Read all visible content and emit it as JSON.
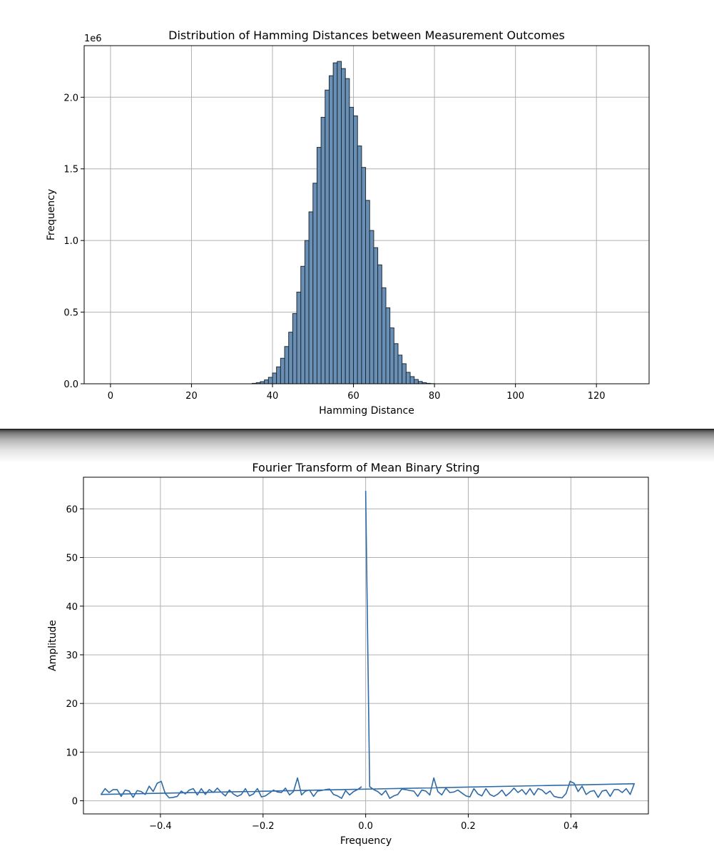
{
  "chart_data": [
    {
      "type": "bar",
      "title": "Distribution of Hamming Distances between Measurement Outcomes",
      "xlabel": "Hamming Distance",
      "ylabel": "Frequency",
      "y_offset_label": "1e6",
      "xlim": [
        -6.5,
        133
      ],
      "ylim": [
        0,
        2.36
      ],
      "x_ticks": [
        0,
        20,
        40,
        60,
        80,
        100,
        120
      ],
      "y_ticks": [
        0.0,
        0.5,
        1.0,
        1.5,
        2.0
      ],
      "y_tick_labels": [
        "0.0",
        "0.5",
        "1.0",
        "1.5",
        "2.0"
      ],
      "grid": true,
      "bar_color": "#6a8fb4",
      "edge_color": "#1c2a38",
      "bin_start": 0,
      "bin_width": 1,
      "values": [
        0,
        0,
        0,
        0,
        0,
        0,
        0,
        0,
        0,
        0,
        0,
        0,
        0,
        0,
        0,
        0,
        0,
        0,
        0,
        0,
        0,
        0,
        0,
        0,
        0,
        0,
        0,
        0,
        0,
        0,
        0,
        0,
        0,
        0,
        0,
        0.003,
        0.008,
        0.015,
        0.027,
        0.045,
        0.075,
        0.118,
        0.178,
        0.26,
        0.36,
        0.49,
        0.64,
        0.82,
        1.0,
        1.2,
        1.4,
        1.65,
        1.86,
        2.05,
        2.15,
        2.24,
        2.25,
        2.2,
        2.13,
        1.93,
        1.87,
        1.66,
        1.51,
        1.28,
        1.07,
        0.95,
        0.83,
        0.67,
        0.53,
        0.39,
        0.28,
        0.2,
        0.14,
        0.08,
        0.05,
        0.03,
        0.016,
        0.008,
        0.003,
        0.001,
        0,
        0,
        0,
        0,
        0,
        0,
        0,
        0,
        0,
        0,
        0,
        0,
        0,
        0,
        0,
        0,
        0,
        0,
        0,
        0,
        0,
        0,
        0,
        0,
        0,
        0,
        0,
        0,
        0,
        0,
        0,
        0,
        0,
        0,
        0,
        0,
        0,
        0,
        0,
        0,
        0,
        0,
        0,
        0,
        0,
        0,
        0,
        0,
        0
      ]
    },
    {
      "type": "line",
      "title": "Fourier Transform of Mean Binary String",
      "xlabel": "Frequency",
      "ylabel": "Amplitude",
      "xlim": [
        -0.55,
        0.551
      ],
      "ylim": [
        -2.7,
        66.5
      ],
      "x_ticks": [
        -0.4,
        -0.2,
        0.0,
        0.2,
        0.4
      ],
      "x_tick_labels": [
        "−0.4",
        "−0.2",
        "0.0",
        "0.2",
        "0.4"
      ],
      "y_ticks": [
        0,
        10,
        20,
        30,
        40,
        50,
        60
      ],
      "grid": true,
      "line_color": "#2e6aa6",
      "series": [
        {
          "x_start": 0,
          "x_step": 0.0078125,
          "values": [
            63.7,
            2.9,
            2.3,
            1.9,
            1.2,
            2.1,
            0.5,
            1.0,
            1.3,
            2.4,
            2.3,
            2.1,
            2.0,
            0.9,
            2.2,
            2.0,
            1.2,
            4.7,
            1.9,
            1.2,
            2.6,
            1.7,
            1.8,
            2.2,
            1.6,
            1.0,
            0.8,
            2.5,
            1.4,
            1.0,
            2.5,
            1.3,
            0.9,
            1.4,
            2.2,
            1.0,
            1.7,
            2.6,
            1.7,
            2.3,
            1.3,
            2.5,
            1.2,
            2.5,
            2.2,
            1.4,
            2.0,
            0.9,
            0.7,
            0.6,
            1.5,
            4.0,
            3.6,
            1.9,
            3.0,
            1.3,
            1.9,
            2.1,
            0.7,
            2.0,
            2.2,
            0.9,
            2.3,
            2.3,
            1.7,
            2.5,
            1.3,
            3.5,
            1.3,
            2.5,
            1.7,
            2.3,
            2.3,
            0.9,
            2.2,
            2.0,
            0.7,
            2.1,
            1.9,
            1.3,
            3.0,
            1.9,
            3.6,
            4.0,
            1.5,
            0.6,
            0.7,
            0.9,
            2.0,
            1.4,
            2.2,
            2.5,
            1.2,
            2.5,
            1.3,
            2.3,
            1.7,
            2.6,
            1.7,
            1.0,
            2.2,
            1.4,
            0.9,
            1.3,
            2.5,
            1.0,
            1.4,
            2.5,
            0.8,
            1.0,
            1.6,
            2.2,
            1.8,
            1.7,
            2.6,
            1.2,
            1.9,
            4.7,
            1.2,
            2.0,
            2.2,
            0.9,
            2.0,
            2.1,
            2.3,
            2.4,
            1.3,
            1.0,
            0.5,
            2.1,
            1.2,
            1.9,
            2.3,
            2.9
          ]
        }
      ]
    }
  ]
}
